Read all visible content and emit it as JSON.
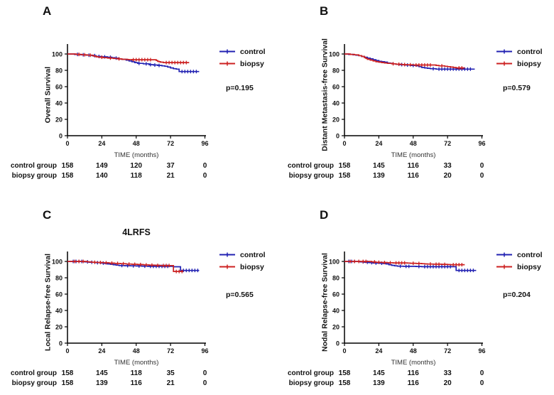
{
  "legend": {
    "control_label": "control",
    "biopsy_label": "biopsy"
  },
  "colors": {
    "control": "#2121b2",
    "biopsy": "#cc2121",
    "axis": "#000000"
  },
  "axis": {
    "xlabel": "TIME (months)",
    "x_ticks": [
      0,
      24,
      48,
      72,
      96
    ],
    "y_ticks": [
      0,
      20,
      40,
      60,
      80,
      100
    ],
    "xlim": [
      0,
      96
    ],
    "ylim": [
      0,
      100
    ]
  },
  "chart_data": [
    {
      "type": "line",
      "subtype": "kaplan-meier-step",
      "letter": "A",
      "title": "",
      "ylabel": "Overall Survival",
      "xlabel": "TIME (months)",
      "p_value": "p=0.195",
      "legend_position": "right",
      "grid": false,
      "series": [
        {
          "name": "control",
          "points": [
            [
              0,
              100
            ],
            [
              5,
              99.5
            ],
            [
              9,
              99
            ],
            [
              13,
              98.5
            ],
            [
              17,
              98
            ],
            [
              20,
              97
            ],
            [
              24,
              96.5
            ],
            [
              28,
              96
            ],
            [
              31,
              95.5
            ],
            [
              33,
              95
            ],
            [
              36,
              94
            ],
            [
              38,
              93.5
            ],
            [
              41,
              92.5
            ],
            [
              43,
              91.5
            ],
            [
              45,
              90.5
            ],
            [
              47,
              89.5
            ],
            [
              49,
              88.5
            ],
            [
              53,
              88
            ],
            [
              57,
              87
            ],
            [
              60,
              86.5
            ],
            [
              63,
              86
            ],
            [
              66,
              85.5
            ],
            [
              68,
              85
            ],
            [
              70,
              84
            ],
            [
              72,
              83
            ],
            [
              74,
              82
            ],
            [
              76,
              81.5
            ],
            [
              78,
              78.5
            ],
            [
              92,
              78.5
            ]
          ],
          "censor_times": [
            7,
            11,
            15,
            19,
            22,
            26,
            30,
            34,
            50,
            55,
            58,
            61,
            64,
            80,
            82,
            84,
            86,
            88,
            90
          ]
        },
        {
          "name": "biopsy",
          "points": [
            [
              0,
              100
            ],
            [
              6,
              99.5
            ],
            [
              10,
              99
            ],
            [
              14,
              98.5
            ],
            [
              18,
              97.5
            ],
            [
              20,
              96.5
            ],
            [
              22,
              96
            ],
            [
              25,
              95.5
            ],
            [
              28,
              95
            ],
            [
              32,
              94.5
            ],
            [
              35,
              94
            ],
            [
              38,
              93.5
            ],
            [
              42,
              93.2
            ],
            [
              45,
              93
            ],
            [
              61,
              93
            ],
            [
              62,
              92
            ],
            [
              63,
              91
            ],
            [
              64,
              90.5
            ],
            [
              65,
              90
            ],
            [
              67,
              89.5
            ],
            [
              85,
              89.5
            ]
          ],
          "censor_times": [
            8,
            12,
            16,
            24,
            30,
            36,
            46,
            48,
            50,
            52,
            54,
            56,
            58,
            69,
            71,
            73,
            75,
            77,
            79,
            81,
            83
          ]
        }
      ],
      "at_risk": {
        "rows": [
          {
            "label": "control group",
            "values": [
              158,
              149,
              120,
              37,
              0
            ]
          },
          {
            "label": "biopsy group",
            "values": [
              158,
              140,
              118,
              21,
              0
            ]
          }
        ]
      }
    },
    {
      "type": "line",
      "subtype": "kaplan-meier-step",
      "letter": "B",
      "title": "",
      "ylabel": "Distant Metastasis-free Survival",
      "xlabel": "TIME (months)",
      "p_value": "p=0.579",
      "legend_position": "right",
      "grid": false,
      "series": [
        {
          "name": "control",
          "points": [
            [
              0,
              100
            ],
            [
              3,
              99.5
            ],
            [
              6,
              99
            ],
            [
              8,
              98.5
            ],
            [
              10,
              98
            ],
            [
              12,
              97
            ],
            [
              14,
              96
            ],
            [
              16,
              95
            ],
            [
              18,
              94
            ],
            [
              20,
              93
            ],
            [
              22,
              92
            ],
            [
              24,
              91
            ],
            [
              26,
              90.5
            ],
            [
              28,
              90
            ],
            [
              30,
              89
            ],
            [
              32,
              88.5
            ],
            [
              34,
              88
            ],
            [
              36,
              87.5
            ],
            [
              38,
              87
            ],
            [
              42,
              86.5
            ],
            [
              46,
              86
            ],
            [
              50,
              85.5
            ],
            [
              52,
              84.5
            ],
            [
              54,
              83.5
            ],
            [
              56,
              83
            ],
            [
              58,
              82.5
            ],
            [
              60,
              82
            ],
            [
              64,
              81.5
            ],
            [
              91,
              81.5
            ]
          ],
          "censor_times": [
            40,
            44,
            48,
            62,
            66,
            68,
            70,
            72,
            74,
            76,
            78,
            80,
            82,
            84,
            86,
            88
          ]
        },
        {
          "name": "biopsy",
          "points": [
            [
              0,
              100
            ],
            [
              4,
              99.5
            ],
            [
              7,
              99
            ],
            [
              10,
              98
            ],
            [
              12,
              97
            ],
            [
              14,
              95.5
            ],
            [
              15,
              94.5
            ],
            [
              16,
              93.5
            ],
            [
              18,
              92.5
            ],
            [
              20,
              91.5
            ],
            [
              22,
              90.5
            ],
            [
              24,
              90
            ],
            [
              26,
              89.5
            ],
            [
              28,
              89
            ],
            [
              30,
              88.5
            ],
            [
              33,
              88
            ],
            [
              36,
              87.5
            ],
            [
              40,
              87
            ],
            [
              44,
              86.8
            ],
            [
              48,
              86.5
            ],
            [
              62,
              86.5
            ],
            [
              64,
              86
            ],
            [
              66,
              85.5
            ],
            [
              70,
              85
            ],
            [
              72,
              84.5
            ],
            [
              74,
              84
            ],
            [
              76,
              83.5
            ],
            [
              78,
              83
            ],
            [
              84,
              83
            ]
          ],
          "censor_times": [
            34,
            38,
            42,
            46,
            50,
            52,
            54,
            56,
            58,
            60,
            68,
            80,
            82
          ]
        }
      ],
      "at_risk": {
        "rows": [
          {
            "label": "control group",
            "values": [
              158,
              145,
              116,
              33,
              0
            ]
          },
          {
            "label": "biopsy group",
            "values": [
              158,
              139,
              116,
              20,
              0
            ]
          }
        ]
      }
    },
    {
      "type": "line",
      "subtype": "kaplan-meier-step",
      "letter": "C",
      "title": "4LRFS",
      "ylabel": "Local Relapse-free Survival",
      "xlabel": "TIME (months)",
      "p_value": "p=0.565",
      "legend_position": "right",
      "grid": false,
      "series": [
        {
          "name": "control",
          "points": [
            [
              0,
              100
            ],
            [
              11,
              100
            ],
            [
              12,
              99.5
            ],
            [
              15,
              99
            ],
            [
              19,
              98.5
            ],
            [
              23,
              98
            ],
            [
              26,
              97.5
            ],
            [
              28,
              97
            ],
            [
              30,
              96.5
            ],
            [
              32,
              96
            ],
            [
              34,
              95.5
            ],
            [
              36,
              95
            ],
            [
              40,
              94.8
            ],
            [
              44,
              94.6
            ],
            [
              48,
              94.4
            ],
            [
              52,
              94.2
            ],
            [
              56,
              94
            ],
            [
              73,
              94
            ],
            [
              74,
              93.5
            ],
            [
              78,
              93.5
            ],
            [
              79,
              89
            ],
            [
              92,
              89
            ]
          ],
          "censor_times": [
            4,
            6,
            8,
            10,
            14,
            17,
            21,
            25,
            38,
            42,
            46,
            50,
            54,
            58,
            60,
            62,
            64,
            66,
            68,
            70,
            81,
            83,
            85,
            87,
            89,
            91
          ]
        },
        {
          "name": "biopsy",
          "points": [
            [
              0,
              100
            ],
            [
              13,
              100
            ],
            [
              14,
              99.5
            ],
            [
              17,
              99
            ],
            [
              21,
              98.7
            ],
            [
              25,
              98.4
            ],
            [
              29,
              98
            ],
            [
              33,
              97.6
            ],
            [
              37,
              97.2
            ],
            [
              41,
              96.8
            ],
            [
              45,
              96.5
            ],
            [
              49,
              96.2
            ],
            [
              53,
              95.8
            ],
            [
              57,
              95.5
            ],
            [
              61,
              95.2
            ],
            [
              65,
              95
            ],
            [
              73,
              95
            ],
            [
              74,
              87.7
            ],
            [
              81,
              87.7
            ]
          ],
          "censor_times": [
            5,
            8,
            11,
            19,
            23,
            27,
            31,
            35,
            39,
            43,
            47,
            51,
            55,
            59,
            63,
            67,
            69,
            71,
            76,
            78,
            80
          ]
        }
      ],
      "at_risk": {
        "rows": [
          {
            "label": "control group",
            "values": [
              158,
              145,
              118,
              35,
              0
            ]
          },
          {
            "label": "biopsy group",
            "values": [
              158,
              139,
              116,
              21,
              0
            ]
          }
        ]
      }
    },
    {
      "type": "line",
      "subtype": "kaplan-meier-step",
      "letter": "D",
      "title": "",
      "ylabel": "Nodal Relapse-free Survival",
      "xlabel": "TIME (months)",
      "p_value": "p=0.204",
      "legend_position": "right",
      "grid": false,
      "series": [
        {
          "name": "control",
          "points": [
            [
              0,
              100
            ],
            [
              9,
              100
            ],
            [
              11,
              99.5
            ],
            [
              14,
              99
            ],
            [
              17,
              98.5
            ],
            [
              20,
              98
            ],
            [
              24,
              97.8
            ],
            [
              27,
              97.5
            ],
            [
              29,
              97
            ],
            [
              31,
              96
            ],
            [
              33,
              95.2
            ],
            [
              35,
              94.6
            ],
            [
              37,
              94.2
            ],
            [
              41,
              94
            ],
            [
              48,
              94
            ],
            [
              50,
              93.8
            ],
            [
              54,
              93.6
            ],
            [
              76,
              93.6
            ],
            [
              78,
              89
            ],
            [
              92,
              89
            ]
          ],
          "censor_times": [
            3,
            5,
            7,
            13,
            16,
            19,
            22,
            26,
            39,
            43,
            45,
            52,
            56,
            58,
            60,
            62,
            64,
            66,
            68,
            70,
            72,
            74,
            80,
            82,
            84,
            86,
            88,
            90
          ]
        },
        {
          "name": "biopsy",
          "points": [
            [
              0,
              100
            ],
            [
              17,
              100
            ],
            [
              19,
              99.5
            ],
            [
              22,
              99
            ],
            [
              26,
              98.7
            ],
            [
              30,
              98.4
            ],
            [
              34,
              98.2
            ],
            [
              44,
              98
            ],
            [
              46,
              97.7
            ],
            [
              50,
              97.5
            ],
            [
              54,
              97.2
            ],
            [
              56,
              97
            ],
            [
              58,
              96.8
            ],
            [
              62,
              96.6
            ],
            [
              68,
              96.4
            ],
            [
              72,
              96.2
            ],
            [
              74,
              96
            ],
            [
              84,
              96
            ]
          ],
          "censor_times": [
            4,
            7,
            10,
            13,
            15,
            21,
            24,
            28,
            32,
            36,
            38,
            40,
            42,
            48,
            52,
            60,
            64,
            66,
            70,
            76,
            78,
            80,
            82
          ]
        }
      ],
      "at_risk": {
        "rows": [
          {
            "label": "control group",
            "values": [
              158,
              145,
              116,
              33,
              0
            ]
          },
          {
            "label": "biopsy group",
            "values": [
              158,
              139,
              116,
              20,
              0
            ]
          }
        ]
      }
    }
  ]
}
